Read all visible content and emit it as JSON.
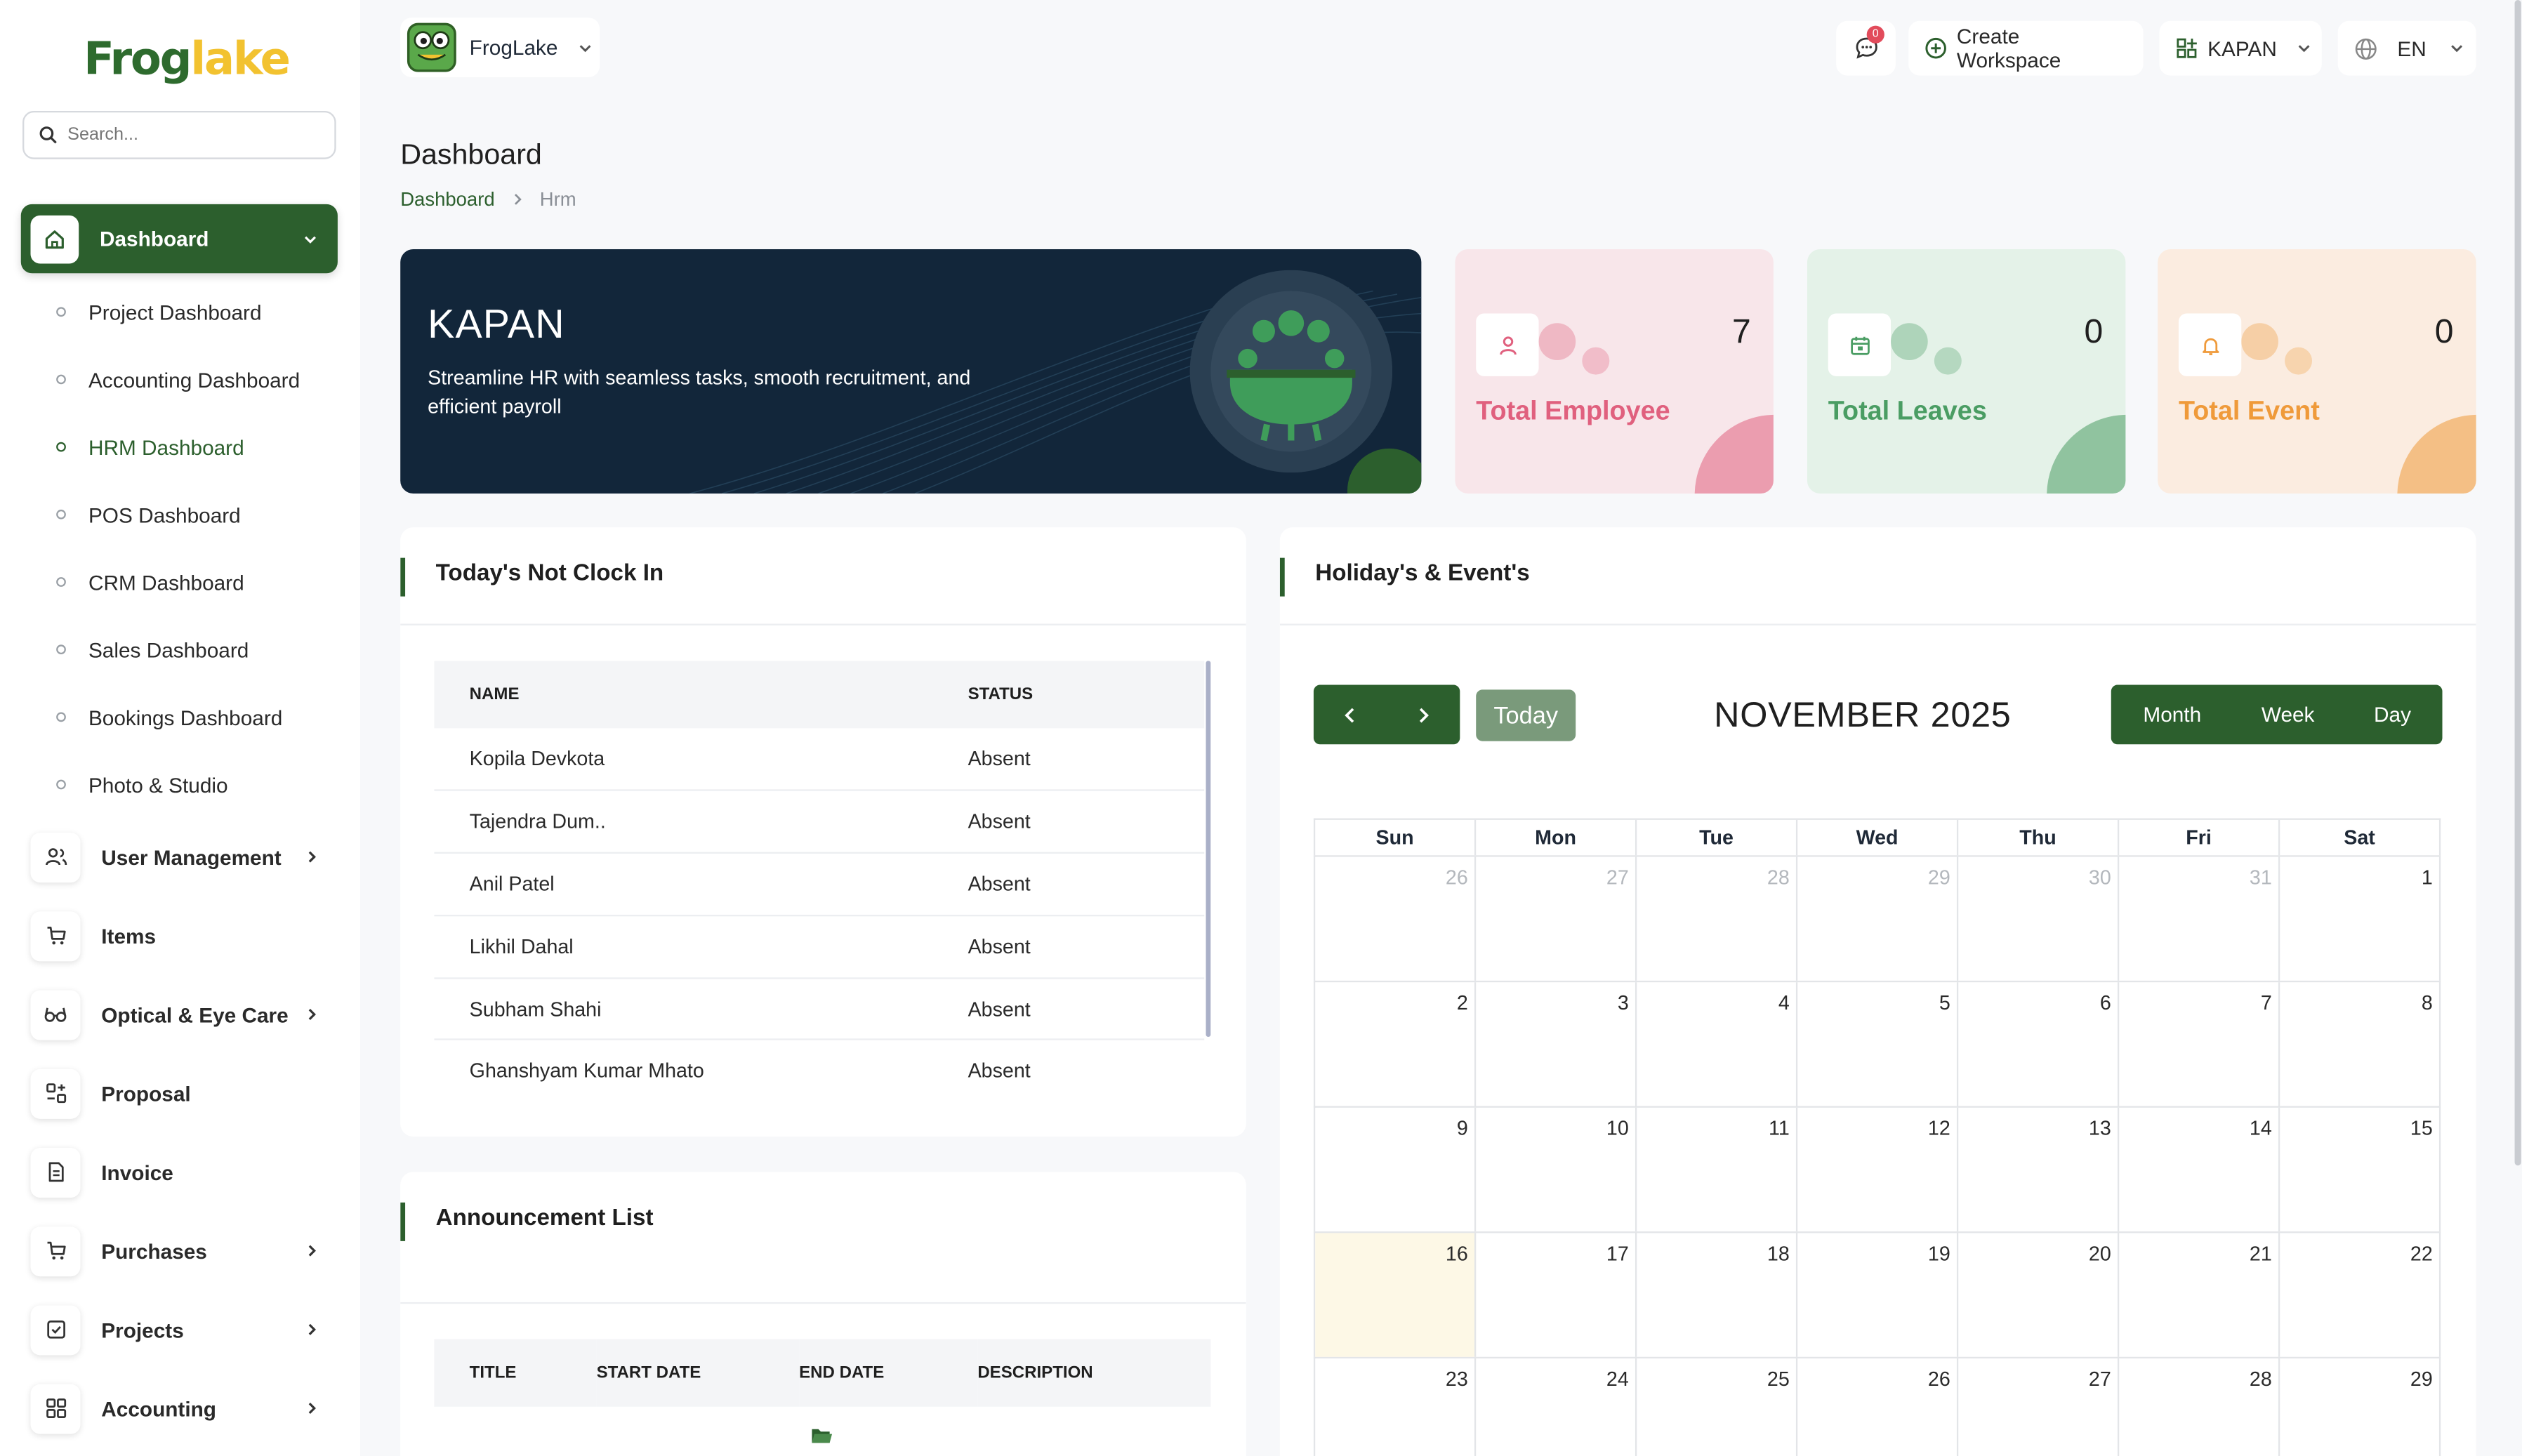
{
  "brand": {
    "logo_part1": "Frog",
    "logo_part2": "lake"
  },
  "search": {
    "placeholder": "Search..."
  },
  "sidebar": {
    "active": {
      "label": "Dashboard"
    },
    "sub_items": [
      {
        "label": "Project Dashboard"
      },
      {
        "label": "Accounting Dashboard"
      },
      {
        "label": "HRM Dashboard"
      },
      {
        "label": "POS Dashboard"
      },
      {
        "label": "CRM Dashboard"
      },
      {
        "label": "Sales Dashboard"
      },
      {
        "label": "Bookings Dashboard"
      },
      {
        "label": "Photo & Studio"
      }
    ],
    "items": [
      {
        "label": "User Management",
        "icon": "users-icon"
      },
      {
        "label": "Items",
        "icon": "cart-icon"
      },
      {
        "label": "Optical & Eye Care",
        "icon": "glasses-icon"
      },
      {
        "label": "Proposal",
        "icon": "proposal-icon"
      },
      {
        "label": "Invoice",
        "icon": "invoice-icon"
      },
      {
        "label": "Purchases",
        "icon": "cart-icon"
      },
      {
        "label": "Projects",
        "icon": "checkbox-icon"
      },
      {
        "label": "Accounting",
        "icon": "grid-icon"
      }
    ]
  },
  "topbar": {
    "workspace": "FrogLake",
    "messages_badge": "0",
    "create_workspace": "Create Workspace",
    "company": "KAPAN",
    "language": "EN"
  },
  "page": {
    "title": "Dashboard",
    "breadcrumb": [
      "Dashboard",
      "Hrm"
    ]
  },
  "banner": {
    "title": "KAPAN",
    "subtitle": "Streamline HR with seamless tasks, smooth recruitment, and efficient payroll"
  },
  "stats": [
    {
      "label": "Total Employee",
      "value": "7",
      "color": "#e0607e",
      "bg": "#f8e6ea",
      "icon": "user-icon"
    },
    {
      "label": "Total Leaves",
      "value": "0",
      "color": "#4a9d63",
      "bg": "#e4f2e8",
      "icon": "calendar-icon"
    },
    {
      "label": "Total Event",
      "value": "0",
      "color": "#ef9a3a",
      "bg": "#fbece0",
      "icon": "bell-icon"
    }
  ],
  "not_clock_in": {
    "title": "Today's Not Clock In",
    "headers": [
      "NAME",
      "STATUS"
    ],
    "rows": [
      {
        "name": "Kopila Devkota",
        "status": "Absent"
      },
      {
        "name": "Tajendra Dum..",
        "status": "Absent"
      },
      {
        "name": "Anil Patel",
        "status": "Absent"
      },
      {
        "name": "Likhil Dahal",
        "status": "Absent"
      },
      {
        "name": "Subham Shahi",
        "status": "Absent"
      },
      {
        "name": "Ghanshyam Kumar Mhato",
        "status": "Absent"
      }
    ]
  },
  "announcements": {
    "title": "Announcement List",
    "headers": [
      "TITLE",
      "START DATE",
      "END DATE",
      "DESCRIPTION"
    ]
  },
  "calendar": {
    "title": "Holiday's & Event's",
    "today_label": "Today",
    "month_title": "NOVEMBER 2025",
    "views": [
      "Month",
      "Week",
      "Day"
    ],
    "weekdays": [
      "Sun",
      "Mon",
      "Tue",
      "Wed",
      "Thu",
      "Fri",
      "Sat"
    ],
    "weeks": [
      [
        "26",
        "27",
        "28",
        "29",
        "30",
        "31",
        "1"
      ],
      [
        "2",
        "3",
        "4",
        "5",
        "6",
        "7",
        "8"
      ],
      [
        "9",
        "10",
        "11",
        "12",
        "13",
        "14",
        "15"
      ],
      [
        "16",
        "17",
        "18",
        "19",
        "20",
        "21",
        "22"
      ],
      [
        "23",
        "24",
        "25",
        "26",
        "27",
        "28",
        "29"
      ]
    ],
    "muted_days_first_week": 6,
    "today_day": "16"
  },
  "colors": {
    "primary": "#2c5f2d",
    "banner": "#12263a"
  }
}
